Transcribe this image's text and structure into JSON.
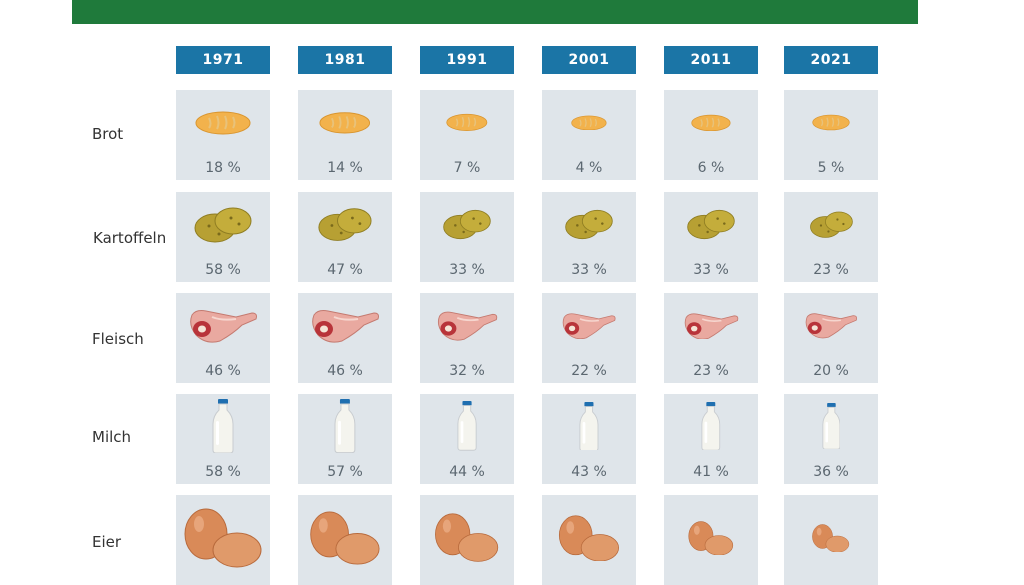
{
  "chart_data": {
    "type": "table",
    "categories": [
      "1971",
      "1981",
      "1991",
      "2001",
      "2011",
      "2021"
    ],
    "series": [
      {
        "name": "Brot",
        "icon": "bread-icon",
        "values": [
          18,
          14,
          7,
          4,
          6,
          5
        ],
        "labels": [
          "18 %",
          "14 %",
          "7 %",
          "4 %",
          "6 %",
          "5 %"
        ]
      },
      {
        "name": "Kartoffeln",
        "icon": "potatoes-icon",
        "values": [
          58,
          47,
          33,
          33,
          33,
          23
        ],
        "labels": [
          "58 %",
          "47 %",
          "33 %",
          "33 %",
          "33 %",
          "23 %"
        ]
      },
      {
        "name": "Fleisch",
        "icon": "meat-icon",
        "values": [
          46,
          46,
          32,
          22,
          23,
          20
        ],
        "labels": [
          "46 %",
          "46 %",
          "32 %",
          "22 %",
          "23 %",
          "20 %"
        ]
      },
      {
        "name": "Milch",
        "icon": "milk-bottle-icon",
        "values": [
          58,
          57,
          44,
          43,
          41,
          36
        ],
        "labels": [
          "58 %",
          "57 %",
          "44 %",
          "43 %",
          "41 %",
          "36 %"
        ]
      },
      {
        "name": "Eier",
        "icon": "eggs-icon",
        "values": [
          null,
          null,
          null,
          null,
          null,
          null
        ],
        "labels": [
          "",
          "",
          "",
          "",
          "",
          ""
        ]
      }
    ],
    "colors": {
      "banner": "#1f7a3b",
      "year_header": "#1b75a6",
      "cell_background": "#dfe5ea",
      "bread": "#f2b24c",
      "potato": "#b7a033",
      "meat": "#e9a9a0",
      "milk": "#f4f4ee",
      "cap": "#1f6fb0",
      "egg": "#d98a58"
    }
  }
}
